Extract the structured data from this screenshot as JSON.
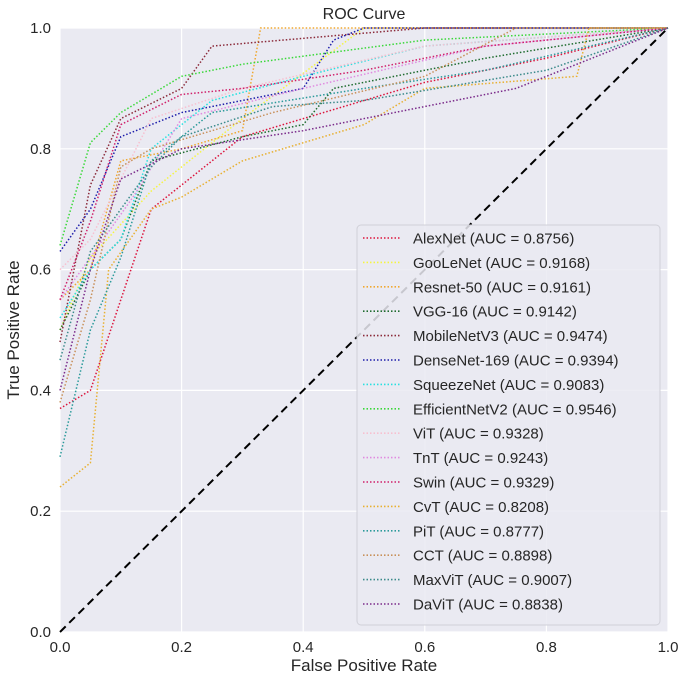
{
  "chart_data": {
    "type": "line",
    "title": "ROC Curve",
    "xlabel": "False Positive Rate",
    "ylabel": "True Positive Rate",
    "xlim": [
      0,
      1
    ],
    "ylim": [
      0,
      1
    ],
    "xticks": [
      "0.0",
      "0.2",
      "0.4",
      "0.6",
      "0.8",
      "1.0"
    ],
    "yticks": [
      "0.0",
      "0.2",
      "0.4",
      "0.6",
      "0.8",
      "1.0"
    ],
    "grid": true,
    "legend_position": "bottom-right",
    "diagonal": {
      "x": [
        0,
        1
      ],
      "y": [
        0,
        1
      ],
      "color": "#000000",
      "style": "dashed"
    },
    "series": [
      {
        "name": "AlexNet (AUC = 0.8756)",
        "color": "#dc143c",
        "points": [
          [
            0,
            0.37
          ],
          [
            0.05,
            0.4
          ],
          [
            0.1,
            0.55
          ],
          [
            0.15,
            0.7
          ],
          [
            0.2,
            0.74
          ],
          [
            0.3,
            0.82
          ],
          [
            0.6,
            0.91
          ],
          [
            0.8,
            0.95
          ],
          [
            1,
            1
          ]
        ]
      },
      {
        "name": "GooLeNet (AUC = 0.9168)",
        "color": "#f5f542",
        "points": [
          [
            0,
            0.5
          ],
          [
            0.05,
            0.62
          ],
          [
            0.15,
            0.73
          ],
          [
            0.3,
            0.85
          ],
          [
            0.5,
            1
          ],
          [
            1,
            1
          ]
        ]
      },
      {
        "name": "Resnet-50 (AUC = 0.9161)",
        "color": "#f0a830",
        "points": [
          [
            0,
            0.55
          ],
          [
            0.05,
            0.6
          ],
          [
            0.1,
            0.78
          ],
          [
            0.2,
            0.8
          ],
          [
            0.3,
            0.83
          ],
          [
            0.33,
            1
          ],
          [
            1,
            1
          ]
        ]
      },
      {
        "name": "VGG-16 (AUC = 0.9142)",
        "color": "#1e6b2e",
        "points": [
          [
            0,
            0.5
          ],
          [
            0.05,
            0.6
          ],
          [
            0.1,
            0.65
          ],
          [
            0.15,
            0.78
          ],
          [
            0.3,
            0.82
          ],
          [
            0.4,
            0.84
          ],
          [
            0.45,
            0.9
          ],
          [
            0.7,
            0.95
          ],
          [
            1,
            1
          ]
        ]
      },
      {
        "name": "MobileNetV3 (AUC = 0.9474)",
        "color": "#8b2a3a",
        "points": [
          [
            0,
            0.48
          ],
          [
            0.05,
            0.74
          ],
          [
            0.1,
            0.85
          ],
          [
            0.2,
            0.9
          ],
          [
            0.25,
            0.97
          ],
          [
            0.6,
            1
          ],
          [
            1,
            1
          ]
        ]
      },
      {
        "name": "DenseNet-169 (AUC = 0.9394)",
        "color": "#1c1caa",
        "points": [
          [
            0,
            0.63
          ],
          [
            0.05,
            0.7
          ],
          [
            0.1,
            0.82
          ],
          [
            0.2,
            0.86
          ],
          [
            0.4,
            0.9
          ],
          [
            0.45,
            0.98
          ],
          [
            0.5,
            1
          ],
          [
            1,
            1
          ]
        ]
      },
      {
        "name": "SqueezeNet (AUC = 0.9083)",
        "color": "#28e0e0",
        "points": [
          [
            0,
            0.52
          ],
          [
            0.05,
            0.6
          ],
          [
            0.1,
            0.65
          ],
          [
            0.15,
            0.8
          ],
          [
            0.25,
            0.88
          ],
          [
            0.4,
            0.92
          ],
          [
            0.6,
            0.97
          ],
          [
            1,
            1
          ]
        ]
      },
      {
        "name": "EfficientNetV2 (AUC = 0.9546)",
        "color": "#3ad83a",
        "points": [
          [
            0,
            0.64
          ],
          [
            0.05,
            0.81
          ],
          [
            0.1,
            0.86
          ],
          [
            0.2,
            0.92
          ],
          [
            0.3,
            0.94
          ],
          [
            0.6,
            0.98
          ],
          [
            1,
            1
          ]
        ]
      },
      {
        "name": "ViT (AUC = 0.9328)",
        "color": "#f7c0d0",
        "points": [
          [
            0,
            0.6
          ],
          [
            0.05,
            0.65
          ],
          [
            0.1,
            0.75
          ],
          [
            0.15,
            0.85
          ],
          [
            0.3,
            0.9
          ],
          [
            0.6,
            0.97
          ],
          [
            1,
            1
          ]
        ]
      },
      {
        "name": "TnT (AUC = 0.9243)",
        "color": "#e08ae0",
        "points": [
          [
            0,
            0.55
          ],
          [
            0.05,
            0.62
          ],
          [
            0.12,
            0.72
          ],
          [
            0.2,
            0.85
          ],
          [
            0.4,
            0.9
          ],
          [
            0.7,
            0.97
          ],
          [
            1,
            1
          ]
        ]
      },
      {
        "name": "Swin (AUC = 0.9329)",
        "color": "#d0206a",
        "points": [
          [
            0,
            0.55
          ],
          [
            0.05,
            0.68
          ],
          [
            0.1,
            0.84
          ],
          [
            0.2,
            0.89
          ],
          [
            0.3,
            0.9
          ],
          [
            0.5,
            0.93
          ],
          [
            0.7,
            0.97
          ],
          [
            1,
            1
          ]
        ]
      },
      {
        "name": "CvT (AUC = 0.8208)",
        "color": "#e8b030",
        "points": [
          [
            0,
            0.24
          ],
          [
            0.05,
            0.28
          ],
          [
            0.08,
            0.6
          ],
          [
            0.15,
            0.7
          ],
          [
            0.2,
            0.72
          ],
          [
            0.3,
            0.78
          ],
          [
            0.5,
            0.84
          ],
          [
            0.6,
            0.9
          ],
          [
            0.85,
            0.92
          ],
          [
            0.87,
            1
          ],
          [
            1,
            1
          ]
        ]
      },
      {
        "name": "PiT (AUC = 0.8777)",
        "color": "#2a9a9a",
        "points": [
          [
            0,
            0.29
          ],
          [
            0.05,
            0.5
          ],
          [
            0.1,
            0.62
          ],
          [
            0.15,
            0.78
          ],
          [
            0.25,
            0.86
          ],
          [
            0.5,
            0.9
          ],
          [
            0.7,
            0.93
          ],
          [
            1,
            1
          ]
        ]
      },
      {
        "name": "CCT (AUC = 0.8898)",
        "color": "#c8905a",
        "points": [
          [
            0,
            0.38
          ],
          [
            0.05,
            0.55
          ],
          [
            0.1,
            0.77
          ],
          [
            0.15,
            0.8
          ],
          [
            0.35,
            0.86
          ],
          [
            0.6,
            0.92
          ],
          [
            0.75,
            1
          ],
          [
            1,
            1
          ]
        ]
      },
      {
        "name": "MaxViT (AUC = 0.9007)",
        "color": "#3a8a8a",
        "points": [
          [
            0,
            0.45
          ],
          [
            0.05,
            0.63
          ],
          [
            0.15,
            0.77
          ],
          [
            0.2,
            0.82
          ],
          [
            0.35,
            0.87
          ],
          [
            0.5,
            0.88
          ],
          [
            0.8,
            0.93
          ],
          [
            1,
            1
          ]
        ]
      },
      {
        "name": "DaViT (AUC = 0.8838)",
        "color": "#7a2a8a",
        "points": [
          [
            0,
            0.4
          ],
          [
            0.05,
            0.6
          ],
          [
            0.1,
            0.75
          ],
          [
            0.2,
            0.8
          ],
          [
            0.4,
            0.83
          ],
          [
            0.55,
            0.86
          ],
          [
            0.75,
            0.9
          ],
          [
            1,
            1
          ]
        ]
      }
    ]
  }
}
